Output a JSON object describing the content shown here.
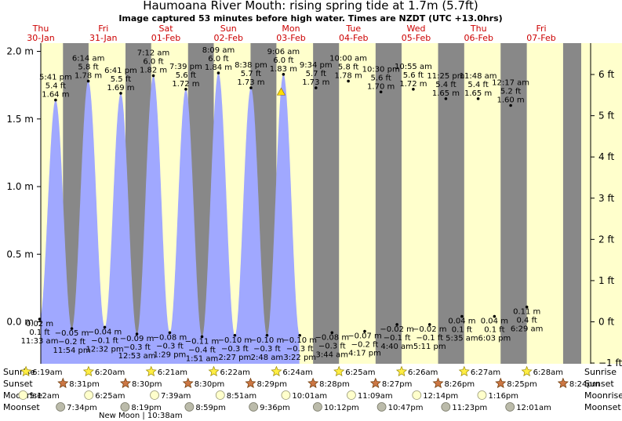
{
  "title": "Haumoana River Mouth: rising  spring tide at 1.7m (5.7ft)",
  "subtitle": "Image captured 53 minutes before high water. Times are NZDT (UTC +13.0hrs)",
  "colors": {
    "night": "#888888",
    "day": "#ffffcc",
    "tide_fill": "#a0a8ff",
    "day_label": "#cc0000",
    "marker": "#ffdd00"
  },
  "chart_data": {
    "type": "area",
    "y_left_label": "m",
    "y_right_label": "ft",
    "y_left_range": [
      -0.15,
      2.05
    ],
    "y_left_ticks": [
      {
        "v": 2.0,
        "label": "2.0 m"
      },
      {
        "v": 1.5,
        "label": "1.5 m"
      },
      {
        "v": 1.0,
        "label": "1.0 m"
      },
      {
        "v": 0.5,
        "label": "0.5 m"
      },
      {
        "v": 0.0,
        "label": "0.0 m"
      }
    ],
    "y_right_ticks": [
      {
        "v": 6,
        "label": "6 ft"
      },
      {
        "v": 5,
        "label": "5 ft"
      },
      {
        "v": 4,
        "label": "4 ft"
      },
      {
        "v": 3,
        "label": "3 ft"
      },
      {
        "v": 2,
        "label": "2 ft"
      },
      {
        "v": 1,
        "label": "1 ft"
      },
      {
        "v": 0,
        "label": "0 ft"
      },
      {
        "v": -1,
        "label": "−1 ft"
      }
    ],
    "x_range_hours": [
      0,
      216
    ],
    "days": [
      {
        "name": "Thu",
        "date": "30-Jan",
        "midnight": 0
      },
      {
        "name": "Fri",
        "date": "31-Jan",
        "midnight": 24
      },
      {
        "name": "Sat",
        "date": "01-Feb",
        "midnight": 48
      },
      {
        "name": "Sun",
        "date": "02-Feb",
        "midnight": 72
      },
      {
        "name": "Mon",
        "date": "03-Feb",
        "midnight": 96
      },
      {
        "name": "Tue",
        "date": "04-Feb",
        "midnight": 120
      },
      {
        "name": "Wed",
        "date": "05-Feb",
        "midnight": 144
      },
      {
        "name": "Thu",
        "date": "06-Feb",
        "midnight": 168
      },
      {
        "name": "Fri",
        "date": "07-Feb",
        "midnight": 192
      }
    ],
    "extremes": [
      {
        "t": "5:41 pm",
        "h": 1.64,
        "ft": "5.4 ft",
        "m": "1.64 m",
        "type": "high"
      },
      {
        "t": "11:33 am",
        "h": 0.02,
        "ft": "0.1 ft",
        "m": "0.02 m",
        "type": "low"
      },
      {
        "t": "6:14 am",
        "h": 1.78,
        "ft": "5.8 ft",
        "m": "1.78 m",
        "type": "high"
      },
      {
        "t": "11:54 pm",
        "h": -0.05,
        "ft": "−0.2 ft",
        "m": "−0.05 m",
        "type": "low"
      },
      {
        "t": "6:41 pm",
        "h": 1.69,
        "ft": "5.5 ft",
        "m": "1.69 m",
        "type": "high"
      },
      {
        "t": "12:32 pm",
        "h": -0.04,
        "ft": "−0.1 ft",
        "m": "−0.04 m",
        "type": "low"
      },
      {
        "t": "7:12 am",
        "h": 1.82,
        "ft": "6.0 ft",
        "m": "1.82 m",
        "type": "high"
      },
      {
        "t": "12:53 am",
        "h": -0.09,
        "ft": "−0.3 ft",
        "m": "−0.09 m",
        "type": "low"
      },
      {
        "t": "7:39 pm",
        "h": 1.72,
        "ft": "5.6 ft",
        "m": "1.72 m",
        "type": "high"
      },
      {
        "t": "1:29 pm",
        "h": -0.08,
        "ft": "−0.3 ft",
        "m": "−0.08 m",
        "type": "low"
      },
      {
        "t": "8:09 am",
        "h": 1.84,
        "ft": "6.0 ft",
        "m": "1.84 m",
        "type": "high"
      },
      {
        "t": "1:51 am",
        "h": -0.11,
        "ft": "−0.4 ft",
        "m": "−0.11 m",
        "type": "low"
      },
      {
        "t": "8:38 pm",
        "h": 1.73,
        "ft": "5.7 ft",
        "m": "1.73 m",
        "type": "high"
      },
      {
        "t": "2:27 pm",
        "h": -0.1,
        "ft": "−0.3 ft",
        "m": "−0.10 m",
        "type": "low"
      },
      {
        "t": "9:06 am",
        "h": 1.83,
        "ft": "6.0 ft",
        "m": "1.83 m",
        "type": "high"
      },
      {
        "t": "2:48 am",
        "h": -0.1,
        "ft": "−0.3 ft",
        "m": "−0.10 m",
        "type": "low"
      },
      {
        "t": "9:34 pm",
        "h": 1.73,
        "ft": "5.7 ft",
        "m": "1.73 m",
        "type": "high"
      },
      {
        "t": "3:22 pm",
        "h": -0.1,
        "ft": "−0.3 ft",
        "m": "−0.10 m",
        "type": "low"
      },
      {
        "t": "10:00 am",
        "h": 1.78,
        "ft": "5.8 ft",
        "m": "1.78 m",
        "type": "high"
      },
      {
        "t": "3:44 am",
        "h": -0.08,
        "ft": "−0.3 ft",
        "m": "−0.08 m",
        "type": "low"
      },
      {
        "t": "10:30 pm",
        "h": 1.7,
        "ft": "5.6 ft",
        "m": "1.70 m",
        "type": "high"
      },
      {
        "t": "4:17 pm",
        "h": -0.07,
        "ft": "−0.2 ft",
        "m": "−0.07 m",
        "type": "low"
      },
      {
        "t": "10:55 am",
        "h": 1.72,
        "ft": "5.6 ft",
        "m": "1.72 m",
        "type": "high"
      },
      {
        "t": "4:40 am",
        "h": -0.02,
        "ft": "−0.1 ft",
        "m": "−0.02 m",
        "type": "low"
      },
      {
        "t": "11:25 pm",
        "h": 1.65,
        "ft": "5.4 ft",
        "m": "1.65 m",
        "type": "high"
      },
      {
        "t": "5:11 pm",
        "h": -0.02,
        "ft": "−0.1 ft",
        "m": "−0.02 m",
        "type": "low"
      },
      {
        "t": "11:48 am",
        "h": 1.65,
        "ft": "5.4 ft",
        "m": "1.65 m",
        "type": "high"
      },
      {
        "t": "5:35 am",
        "h": 0.04,
        "ft": "0.1 ft",
        "m": "0.04 m",
        "type": "low"
      },
      {
        "t": "12:17 am",
        "h": 1.6,
        "ft": "5.2 ft",
        "m": "1.60 m",
        "type": "high"
      },
      {
        "t": "6:03 pm",
        "h": 0.04,
        "ft": "0.1 ft",
        "m": "0.04 m",
        "type": "low"
      },
      {
        "t": "6:29 am",
        "h": 0.11,
        "ft": "0.4 ft",
        "m": "0.11 m",
        "type": "low"
      }
    ],
    "now_marker_time": "8:13 am Mon"
  },
  "rows": {
    "labels": {
      "sunrise": "Sunrise",
      "sunset": "Sunset",
      "moonrise": "Moonrise",
      "moonset": "Moonset"
    },
    "sunrise": [
      "6:19am",
      "6:20am",
      "6:21am",
      "6:22am",
      "6:24am",
      "6:25am",
      "6:26am",
      "6:27am",
      "6:28am"
    ],
    "sunset": [
      "8:31pm",
      "8:30pm",
      "8:30pm",
      "8:29pm",
      "8:28pm",
      "8:27pm",
      "8:26pm",
      "8:25pm",
      "8:24pm"
    ],
    "moonrise": [
      "5:12am",
      "6:25am",
      "7:39am",
      "8:51am",
      "10:01am",
      "11:09am",
      "12:14pm",
      "1:16pm"
    ],
    "moonset": [
      "7:34pm",
      "8:19pm",
      "8:59pm",
      "9:36pm",
      "10:12pm",
      "10:47pm",
      "11:23pm",
      "12:01am"
    ],
    "new_moon": "New Moon | 10:38am"
  }
}
